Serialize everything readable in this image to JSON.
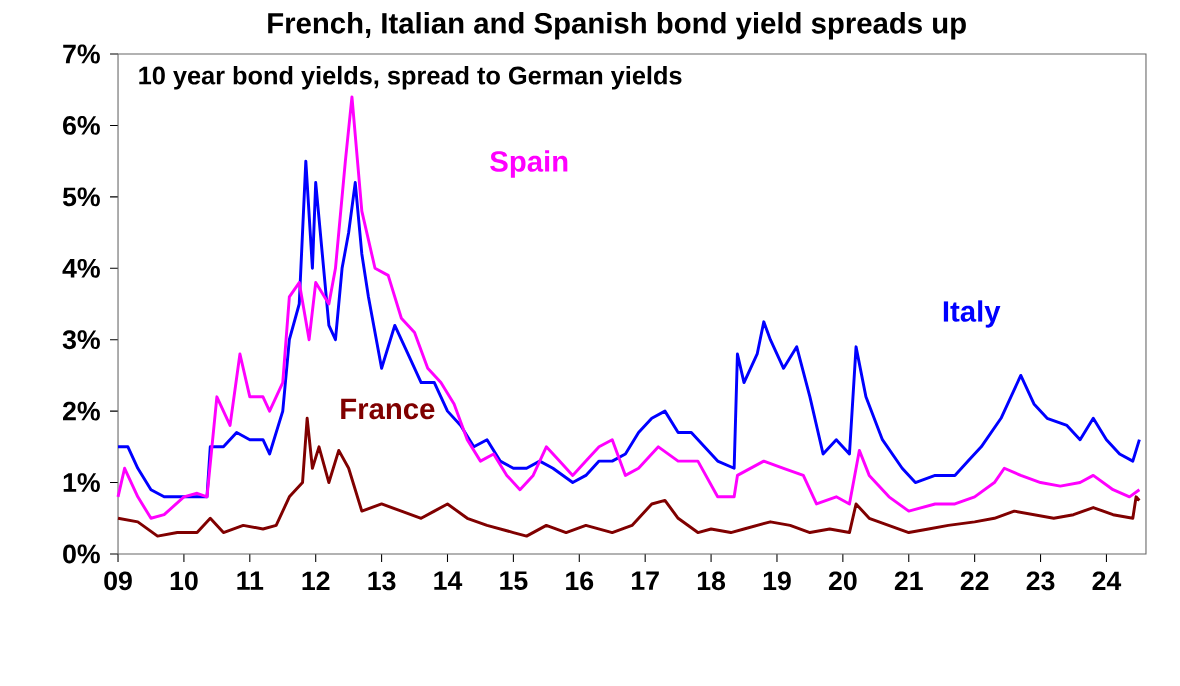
{
  "chart_data": {
    "type": "line",
    "title": "French, Italian and Spanish bond yield spreads up",
    "subtitle": "10 year bond yields, spread to German yields",
    "xlim": [
      2009,
      2024.6
    ],
    "xticks": [
      {
        "value": 2009,
        "label": "09"
      },
      {
        "value": 2010,
        "label": "10"
      },
      {
        "value": 2011,
        "label": "11"
      },
      {
        "value": 2012,
        "label": "12"
      },
      {
        "value": 2013,
        "label": "13"
      },
      {
        "value": 2014,
        "label": "14"
      },
      {
        "value": 2015,
        "label": "15"
      },
      {
        "value": 2016,
        "label": "16"
      },
      {
        "value": 2017,
        "label": "17"
      },
      {
        "value": 2018,
        "label": "18"
      },
      {
        "value": 2019,
        "label": "19"
      },
      {
        "value": 2020,
        "label": "20"
      },
      {
        "value": 2021,
        "label": "21"
      },
      {
        "value": 2022,
        "label": "22"
      },
      {
        "value": 2023,
        "label": "23"
      },
      {
        "value": 2024,
        "label": "24"
      }
    ],
    "ylim": [
      0,
      7
    ],
    "yticks": [
      {
        "value": 0,
        "label": "0%"
      },
      {
        "value": 1,
        "label": "1%"
      },
      {
        "value": 2,
        "label": "2%"
      },
      {
        "value": 3,
        "label": "3%"
      },
      {
        "value": 4,
        "label": "4%"
      },
      {
        "value": 5,
        "label": "5%"
      },
      {
        "value": 6,
        "label": "6%"
      },
      {
        "value": 7,
        "label": "7%"
      }
    ],
    "grid": false,
    "legend": false,
    "marker": "none",
    "line_style": "solid",
    "series": [
      {
        "name": "Italy",
        "color": "#0000ff",
        "x": [
          2009.0,
          2009.15,
          2009.3,
          2009.5,
          2009.7,
          2010.0,
          2010.2,
          2010.35,
          2010.4,
          2010.6,
          2010.8,
          2011.0,
          2011.2,
          2011.3,
          2011.5,
          2011.6,
          2011.75,
          2011.85,
          2011.95,
          2012.0,
          2012.2,
          2012.3,
          2012.4,
          2012.5,
          2012.6,
          2012.7,
          2012.8,
          2013.0,
          2013.2,
          2013.4,
          2013.6,
          2013.8,
          2014.0,
          2014.2,
          2014.4,
          2014.6,
          2014.8,
          2015.0,
          2015.2,
          2015.4,
          2015.6,
          2015.9,
          2016.1,
          2016.3,
          2016.5,
          2016.7,
          2016.9,
          2017.1,
          2017.3,
          2017.5,
          2017.7,
          2017.9,
          2018.1,
          2018.35,
          2018.4,
          2018.5,
          2018.7,
          2018.8,
          2018.9,
          2019.1,
          2019.3,
          2019.5,
          2019.7,
          2019.9,
          2020.1,
          2020.2,
          2020.35,
          2020.6,
          2020.9,
          2021.1,
          2021.4,
          2021.7,
          2021.9,
          2022.1,
          2022.4,
          2022.7,
          2022.9,
          2023.1,
          2023.4,
          2023.6,
          2023.8,
          2024.0,
          2024.2,
          2024.4,
          2024.5
        ],
        "values": [
          1.5,
          1.5,
          1.2,
          0.9,
          0.8,
          0.8,
          0.8,
          0.8,
          1.5,
          1.5,
          1.7,
          1.6,
          1.6,
          1.4,
          2.0,
          3.0,
          3.5,
          5.5,
          4.0,
          5.2,
          3.2,
          3.0,
          4.0,
          4.5,
          5.2,
          4.2,
          3.6,
          2.6,
          3.2,
          2.8,
          2.4,
          2.4,
          2.0,
          1.8,
          1.5,
          1.6,
          1.3,
          1.2,
          1.2,
          1.3,
          1.2,
          1.0,
          1.1,
          1.3,
          1.3,
          1.4,
          1.7,
          1.9,
          2.0,
          1.7,
          1.7,
          1.5,
          1.3,
          1.2,
          2.8,
          2.4,
          2.8,
          3.25,
          3.0,
          2.6,
          2.9,
          2.2,
          1.4,
          1.6,
          1.4,
          2.9,
          2.2,
          1.6,
          1.2,
          1.0,
          1.1,
          1.1,
          1.3,
          1.5,
          1.9,
          2.5,
          2.1,
          1.9,
          1.8,
          1.6,
          1.9,
          1.6,
          1.4,
          1.3,
          1.6
        ]
      },
      {
        "name": "Spain",
        "color": "#ff00ff",
        "x": [
          2009.0,
          2009.1,
          2009.3,
          2009.5,
          2009.7,
          2010.0,
          2010.2,
          2010.35,
          2010.5,
          2010.7,
          2010.85,
          2011.0,
          2011.2,
          2011.3,
          2011.5,
          2011.6,
          2011.75,
          2011.9,
          2012.0,
          2012.2,
          2012.3,
          2012.45,
          2012.55,
          2012.7,
          2012.9,
          2013.1,
          2013.3,
          2013.5,
          2013.7,
          2013.9,
          2014.1,
          2014.3,
          2014.5,
          2014.7,
          2014.9,
          2015.1,
          2015.3,
          2015.5,
          2015.7,
          2015.9,
          2016.1,
          2016.3,
          2016.5,
          2016.7,
          2016.9,
          2017.2,
          2017.5,
          2017.8,
          2018.1,
          2018.35,
          2018.4,
          2018.8,
          2019.1,
          2019.4,
          2019.6,
          2019.9,
          2020.1,
          2020.25,
          2020.4,
          2020.7,
          2021.0,
          2021.4,
          2021.7,
          2022.0,
          2022.3,
          2022.45,
          2022.7,
          2023.0,
          2023.3,
          2023.6,
          2023.8,
          2024.1,
          2024.35,
          2024.5
        ],
        "values": [
          0.8,
          1.2,
          0.8,
          0.5,
          0.55,
          0.8,
          0.85,
          0.8,
          2.2,
          1.8,
          2.8,
          2.2,
          2.2,
          2.0,
          2.4,
          3.6,
          3.8,
          3.0,
          3.8,
          3.5,
          4.0,
          5.5,
          6.4,
          4.8,
          4.0,
          3.9,
          3.3,
          3.1,
          2.6,
          2.4,
          2.1,
          1.6,
          1.3,
          1.4,
          1.1,
          0.9,
          1.1,
          1.5,
          1.3,
          1.1,
          1.3,
          1.5,
          1.6,
          1.1,
          1.2,
          1.5,
          1.3,
          1.3,
          0.8,
          0.8,
          1.1,
          1.3,
          1.2,
          1.1,
          0.7,
          0.8,
          0.7,
          1.45,
          1.1,
          0.8,
          0.6,
          0.7,
          0.7,
          0.8,
          1.0,
          1.2,
          1.1,
          1.0,
          0.95,
          1.0,
          1.1,
          0.9,
          0.8,
          0.9
        ]
      },
      {
        "name": "France",
        "color": "#800000",
        "x": [
          2009.0,
          2009.3,
          2009.6,
          2009.9,
          2010.2,
          2010.4,
          2010.6,
          2010.9,
          2011.2,
          2011.4,
          2011.6,
          2011.8,
          2011.87,
          2011.95,
          2012.05,
          2012.2,
          2012.35,
          2012.5,
          2012.6,
          2012.7,
          2013.0,
          2013.3,
          2013.6,
          2013.8,
          2014.0,
          2014.3,
          2014.6,
          2015.0,
          2015.2,
          2015.5,
          2015.8,
          2016.1,
          2016.5,
          2016.8,
          2017.1,
          2017.3,
          2017.5,
          2017.8,
          2018.0,
          2018.3,
          2018.5,
          2018.9,
          2019.2,
          2019.5,
          2019.8,
          2020.1,
          2020.2,
          2020.4,
          2020.7,
          2021.0,
          2021.3,
          2021.6,
          2022.0,
          2022.3,
          2022.6,
          2022.9,
          2023.2,
          2023.5,
          2023.8,
          2024.1,
          2024.4,
          2024.45,
          2024.5
        ],
        "values": [
          0.5,
          0.45,
          0.25,
          0.3,
          0.3,
          0.5,
          0.3,
          0.4,
          0.35,
          0.4,
          0.8,
          1.0,
          1.9,
          1.2,
          1.5,
          1.0,
          1.45,
          1.2,
          0.9,
          0.6,
          0.7,
          0.6,
          0.5,
          0.6,
          0.7,
          0.5,
          0.4,
          0.3,
          0.25,
          0.4,
          0.3,
          0.4,
          0.3,
          0.4,
          0.7,
          0.75,
          0.5,
          0.3,
          0.35,
          0.3,
          0.35,
          0.45,
          0.4,
          0.3,
          0.35,
          0.3,
          0.7,
          0.5,
          0.4,
          0.3,
          0.35,
          0.4,
          0.45,
          0.5,
          0.6,
          0.55,
          0.5,
          0.55,
          0.65,
          0.55,
          0.5,
          0.8,
          0.75
        ]
      }
    ]
  }
}
